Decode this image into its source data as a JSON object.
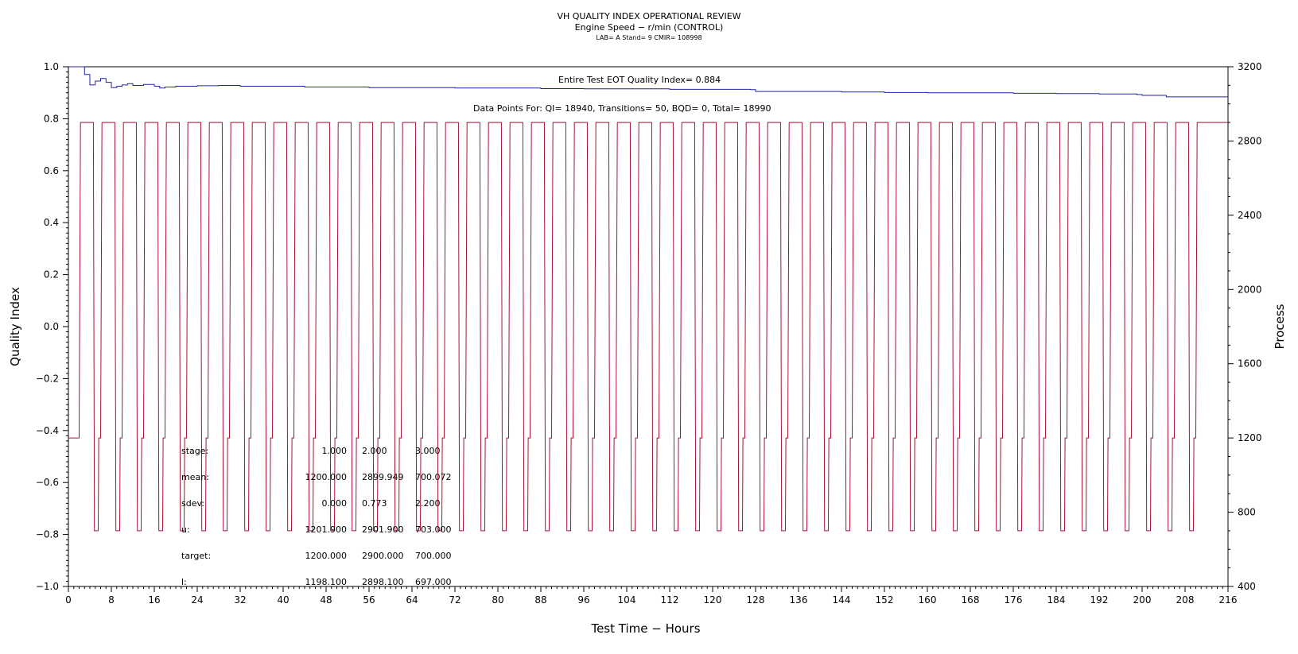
{
  "chart_data": {
    "type": "line",
    "title": "VH QUALITY INDEX OPERATIONAL REVIEW",
    "subtitle": "Engine Speed − r/min (CONTROL)",
    "subsubtitle": "LAB= A Stand= 9 CMIR= 108998",
    "xlabel": "Test Time − Hours",
    "ylabel_left": "Quality Index",
    "ylabel_right": "Process",
    "xlim": [
      0,
      216
    ],
    "ylim_left": [
      -1.0,
      1.0
    ],
    "ylim_right": [
      400,
      3200
    ],
    "x_ticks": [
      "0",
      "8",
      "16",
      "24",
      "32",
      "40",
      "48",
      "56",
      "64",
      "72",
      "80",
      "88",
      "96",
      "104",
      "112",
      "120",
      "128",
      "136",
      "144",
      "152",
      "160",
      "168",
      "176",
      "184",
      "192",
      "200",
      "208",
      "216"
    ],
    "y_left_ticks": [
      "1.0",
      "0.8",
      "0.6",
      "0.4",
      "0.2",
      "0.0",
      "−0.2",
      "−0.4",
      "−0.6",
      "−0.8",
      "−1.0"
    ],
    "y_right_ticks": [
      "3200",
      "2800",
      "2400",
      "2000",
      "1600",
      "1200",
      "800",
      "400"
    ],
    "annotations": {
      "quality_index": "Entire Test EOT Quality Index=   0.884",
      "data_points": "Data Points For: QI= 18940, Transitions=    50, BQD=     0, Total= 18990"
    },
    "stats_table": {
      "rows": [
        {
          "label": "stage:",
          "values": [
            "1.000",
            "2.000",
            "3.000"
          ]
        },
        {
          "label": "mean:",
          "values": [
            "1200.000",
            "2899.949",
            "700.072"
          ]
        },
        {
          "label": "sdev:",
          "values": [
            "0.000",
            "0.773",
            "2.200"
          ]
        },
        {
          "label": "u:",
          "values": [
            "1201.900",
            "2901.900",
            "703.000"
          ]
        },
        {
          "label": "target:",
          "values": [
            "1200.000",
            "2900.000",
            "700.000"
          ]
        },
        {
          "label": "l:",
          "values": [
            "1198.100",
            "2898.100",
            "697.000"
          ]
        }
      ]
    },
    "series": [
      {
        "axis": "left",
        "color": "#2222aa",
        "style": "step",
        "points": [
          [
            0,
            1.0
          ],
          [
            2,
            1.0
          ],
          [
            3,
            0.97
          ],
          [
            4,
            0.93
          ],
          [
            5,
            0.945
          ],
          [
            6,
            0.955
          ],
          [
            7,
            0.94
          ],
          [
            8,
            0.92
          ],
          [
            9,
            0.925
          ],
          [
            10,
            0.93
          ],
          [
            11,
            0.935
          ],
          [
            12,
            0.928
          ],
          [
            14,
            0.932
          ],
          [
            16,
            0.925
          ],
          [
            17,
            0.918
          ],
          [
            18,
            0.922
          ],
          [
            20,
            0.925
          ],
          [
            24,
            0.927
          ],
          [
            28,
            0.928
          ],
          [
            32,
            0.925
          ],
          [
            40,
            0.925
          ],
          [
            44,
            0.922
          ],
          [
            50,
            0.922
          ],
          [
            56,
            0.92
          ],
          [
            64,
            0.92
          ],
          [
            72,
            0.918
          ],
          [
            80,
            0.918
          ],
          [
            88,
            0.916
          ],
          [
            96,
            0.915
          ],
          [
            104,
            0.915
          ],
          [
            112,
            0.913
          ],
          [
            120,
            0.913
          ],
          [
            127,
            0.912
          ],
          [
            128,
            0.905
          ],
          [
            136,
            0.905
          ],
          [
            144,
            0.903
          ],
          [
            152,
            0.901
          ],
          [
            160,
            0.9
          ],
          [
            168,
            0.9
          ],
          [
            176,
            0.898
          ],
          [
            184,
            0.897
          ],
          [
            192,
            0.895
          ],
          [
            199,
            0.893
          ],
          [
            200,
            0.89
          ],
          [
            204,
            0.89
          ],
          [
            204.5,
            0.884
          ],
          [
            216,
            0.884
          ]
        ]
      },
      {
        "axis": "right",
        "color": "#aa1133",
        "style": "cycle",
        "cycle_period_hours": 4,
        "first_cycle_start_hours": 2.0,
        "cycles": 53,
        "levels": [
          1200,
          2900,
          700
        ],
        "stage_hours": [
          0.9,
          2.4,
          0.7
        ],
        "initial_level": 1200,
        "final_level": 2900
      }
    ]
  }
}
